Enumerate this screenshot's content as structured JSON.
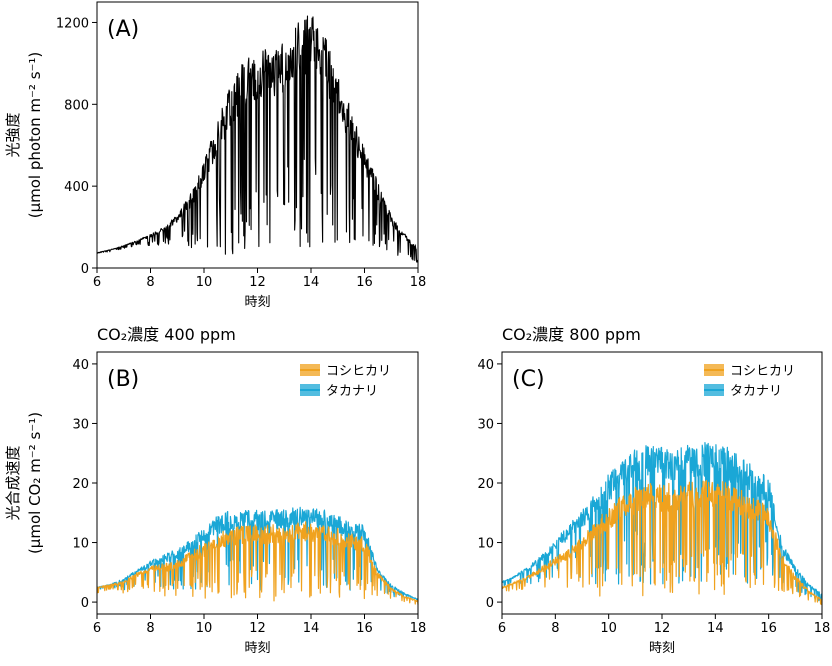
{
  "chart_data": [
    {
      "type": "line",
      "panel_label": "(A)",
      "title": "",
      "ylabel_line1": "光強度",
      "ylabel_line2": "(μmol photon m⁻² s⁻¹)",
      "xlabel": "時刻",
      "xlim": [
        6,
        18
      ],
      "ylim": [
        0,
        1300
      ],
      "xticks": [
        6,
        8,
        10,
        12,
        14,
        16,
        18
      ],
      "yticks": [
        0,
        400,
        800,
        1200
      ],
      "series": [
        {
          "color": "#000000",
          "x": [
            6.0,
            6.5,
            7.0,
            7.5,
            8.0,
            8.5,
            9.0,
            9.5,
            10.0,
            10.5,
            11.0,
            11.5,
            12.0,
            12.5,
            13.0,
            13.5,
            14.0,
            14.5,
            15.0,
            15.5,
            16.0,
            16.5,
            17.0,
            17.5,
            18.0
          ],
          "upper": [
            75,
            90,
            110,
            135,
            165,
            200,
            265,
            365,
            520,
            720,
            900,
            1030,
            1060,
            1080,
            1120,
            1200,
            1250,
            1150,
            960,
            780,
            600,
            420,
            260,
            170,
            100
          ],
          "lower": [
            70,
            80,
            95,
            110,
            100,
            120,
            100,
            90,
            70,
            70,
            65,
            70,
            75,
            70,
            70,
            70,
            80,
            75,
            80,
            80,
            75,
            70,
            60,
            50,
            20
          ]
        }
      ]
    },
    {
      "type": "line",
      "panel_label": "(B)",
      "title": "CO₂濃度 400 ppm",
      "ylabel_line1": "光合成速度",
      "ylabel_line2": "(μmol CO₂ m⁻² s⁻¹)",
      "xlabel": "時刻",
      "xlim": [
        6,
        18
      ],
      "ylim": [
        -2,
        42
      ],
      "xticks": [
        6,
        8,
        10,
        12,
        14,
        16,
        18
      ],
      "yticks": [
        0,
        10,
        20,
        30,
        40
      ],
      "legend": [
        "コシヒカリ",
        "タカナリ"
      ],
      "legend_position": "top-right",
      "series": [
        {
          "name": "タカナリ",
          "color": "#1aa7d6",
          "x": [
            6.0,
            6.5,
            7.0,
            7.5,
            8.0,
            8.5,
            9.0,
            9.5,
            10.0,
            10.5,
            11.0,
            11.5,
            12.0,
            12.5,
            13.0,
            13.5,
            14.0,
            14.5,
            15.0,
            15.5,
            16.0,
            16.5,
            17.0,
            17.5,
            18.0
          ],
          "upper": [
            2.5,
            3.0,
            4.0,
            5.5,
            7.0,
            8.0,
            9.0,
            10.5,
            12.5,
            14.5,
            15.5,
            15.5,
            15.5,
            15.5,
            15.5,
            16.0,
            16.0,
            15.5,
            14.5,
            13.5,
            13.0,
            5.5,
            3.0,
            1.5,
            0.5
          ],
          "lower": [
            2.0,
            2.5,
            2.0,
            2.5,
            3.0,
            2.0,
            2.0,
            2.0,
            2.5,
            2.0,
            2.0,
            2.0,
            2.0,
            2.0,
            2.0,
            2.0,
            2.0,
            2.5,
            2.0,
            2.0,
            2.0,
            2.0,
            1.0,
            0.5,
            -0.5
          ]
        },
        {
          "name": "コシヒカリ",
          "color": "#f0a21e",
          "x": [
            6.0,
            6.5,
            7.0,
            7.5,
            8.0,
            8.5,
            9.0,
            9.5,
            10.0,
            10.5,
            11.0,
            11.5,
            12.0,
            12.5,
            13.0,
            13.5,
            14.0,
            14.5,
            15.0,
            15.5,
            16.0,
            16.5,
            17.0,
            17.5,
            18.0
          ],
          "upper": [
            2.5,
            3.0,
            3.5,
            5.0,
            6.0,
            6.5,
            7.0,
            8.5,
            10.0,
            11.5,
            12.5,
            13.0,
            13.0,
            13.0,
            13.0,
            13.5,
            13.5,
            13.0,
            12.5,
            11.5,
            11.0,
            5.0,
            2.5,
            1.0,
            0.2
          ],
          "lower": [
            1.5,
            2.0,
            1.5,
            2.0,
            2.0,
            1.0,
            1.0,
            1.0,
            0.5,
            0.5,
            0.0,
            0.5,
            0.5,
            0.0,
            0.5,
            0.5,
            0.5,
            0.5,
            0.5,
            0.5,
            0.5,
            1.0,
            0.5,
            0.0,
            -0.5
          ]
        }
      ]
    },
    {
      "type": "line",
      "panel_label": "(C)",
      "title": "CO₂濃度 800 ppm",
      "xlabel": "時刻",
      "xlim": [
        6,
        18
      ],
      "ylim": [
        -2,
        42
      ],
      "xticks": [
        6,
        8,
        10,
        12,
        14,
        16,
        18
      ],
      "yticks": [
        0,
        10,
        20,
        30,
        40
      ],
      "legend": [
        "コシヒカリ",
        "タカナリ"
      ],
      "legend_position": "top-right",
      "series": [
        {
          "name": "タカナリ",
          "color": "#1aa7d6",
          "x": [
            6.0,
            6.5,
            7.0,
            7.5,
            8.0,
            8.5,
            9.0,
            9.5,
            10.0,
            10.5,
            11.0,
            11.5,
            12.0,
            12.5,
            13.0,
            13.5,
            14.0,
            14.5,
            15.0,
            15.5,
            16.0,
            16.5,
            17.0,
            17.5,
            18.0
          ],
          "upper": [
            3.5,
            4.5,
            6.0,
            8.0,
            10.5,
            13.0,
            15.5,
            18.5,
            21.5,
            24.5,
            26.0,
            26.5,
            26.5,
            26.0,
            26.5,
            27.0,
            27.0,
            26.0,
            24.5,
            22.5,
            21.0,
            10.0,
            6.0,
            3.0,
            1.5
          ],
          "lower": [
            2.5,
            3.0,
            3.0,
            3.0,
            3.5,
            3.0,
            3.0,
            3.0,
            3.0,
            3.0,
            3.0,
            3.0,
            3.0,
            3.0,
            3.0,
            3.0,
            3.0,
            3.0,
            3.0,
            3.0,
            3.0,
            3.0,
            1.5,
            1.0,
            0.0
          ]
        },
        {
          "name": "コシヒカリ",
          "color": "#f0a21e",
          "x": [
            6.0,
            6.5,
            7.0,
            7.5,
            8.0,
            8.5,
            9.0,
            9.5,
            10.0,
            10.5,
            11.0,
            11.5,
            12.0,
            12.5,
            13.0,
            13.5,
            14.0,
            14.5,
            15.0,
            15.5,
            16.0,
            16.5,
            17.0,
            17.5,
            18.0
          ],
          "upper": [
            2.5,
            3.5,
            4.5,
            6.0,
            7.5,
            9.0,
            11.0,
            13.5,
            16.0,
            18.0,
            19.5,
            20.0,
            20.0,
            20.0,
            20.5,
            20.5,
            21.0,
            20.0,
            19.0,
            17.5,
            16.0,
            8.0,
            4.5,
            2.0,
            0.5
          ],
          "lower": [
            1.5,
            2.0,
            2.0,
            2.0,
            2.0,
            1.5,
            1.0,
            1.0,
            1.0,
            1.0,
            1.0,
            1.0,
            1.0,
            1.0,
            1.0,
            1.0,
            1.0,
            1.0,
            1.0,
            1.0,
            1.0,
            1.5,
            0.5,
            0.0,
            -0.5
          ]
        }
      ]
    }
  ]
}
